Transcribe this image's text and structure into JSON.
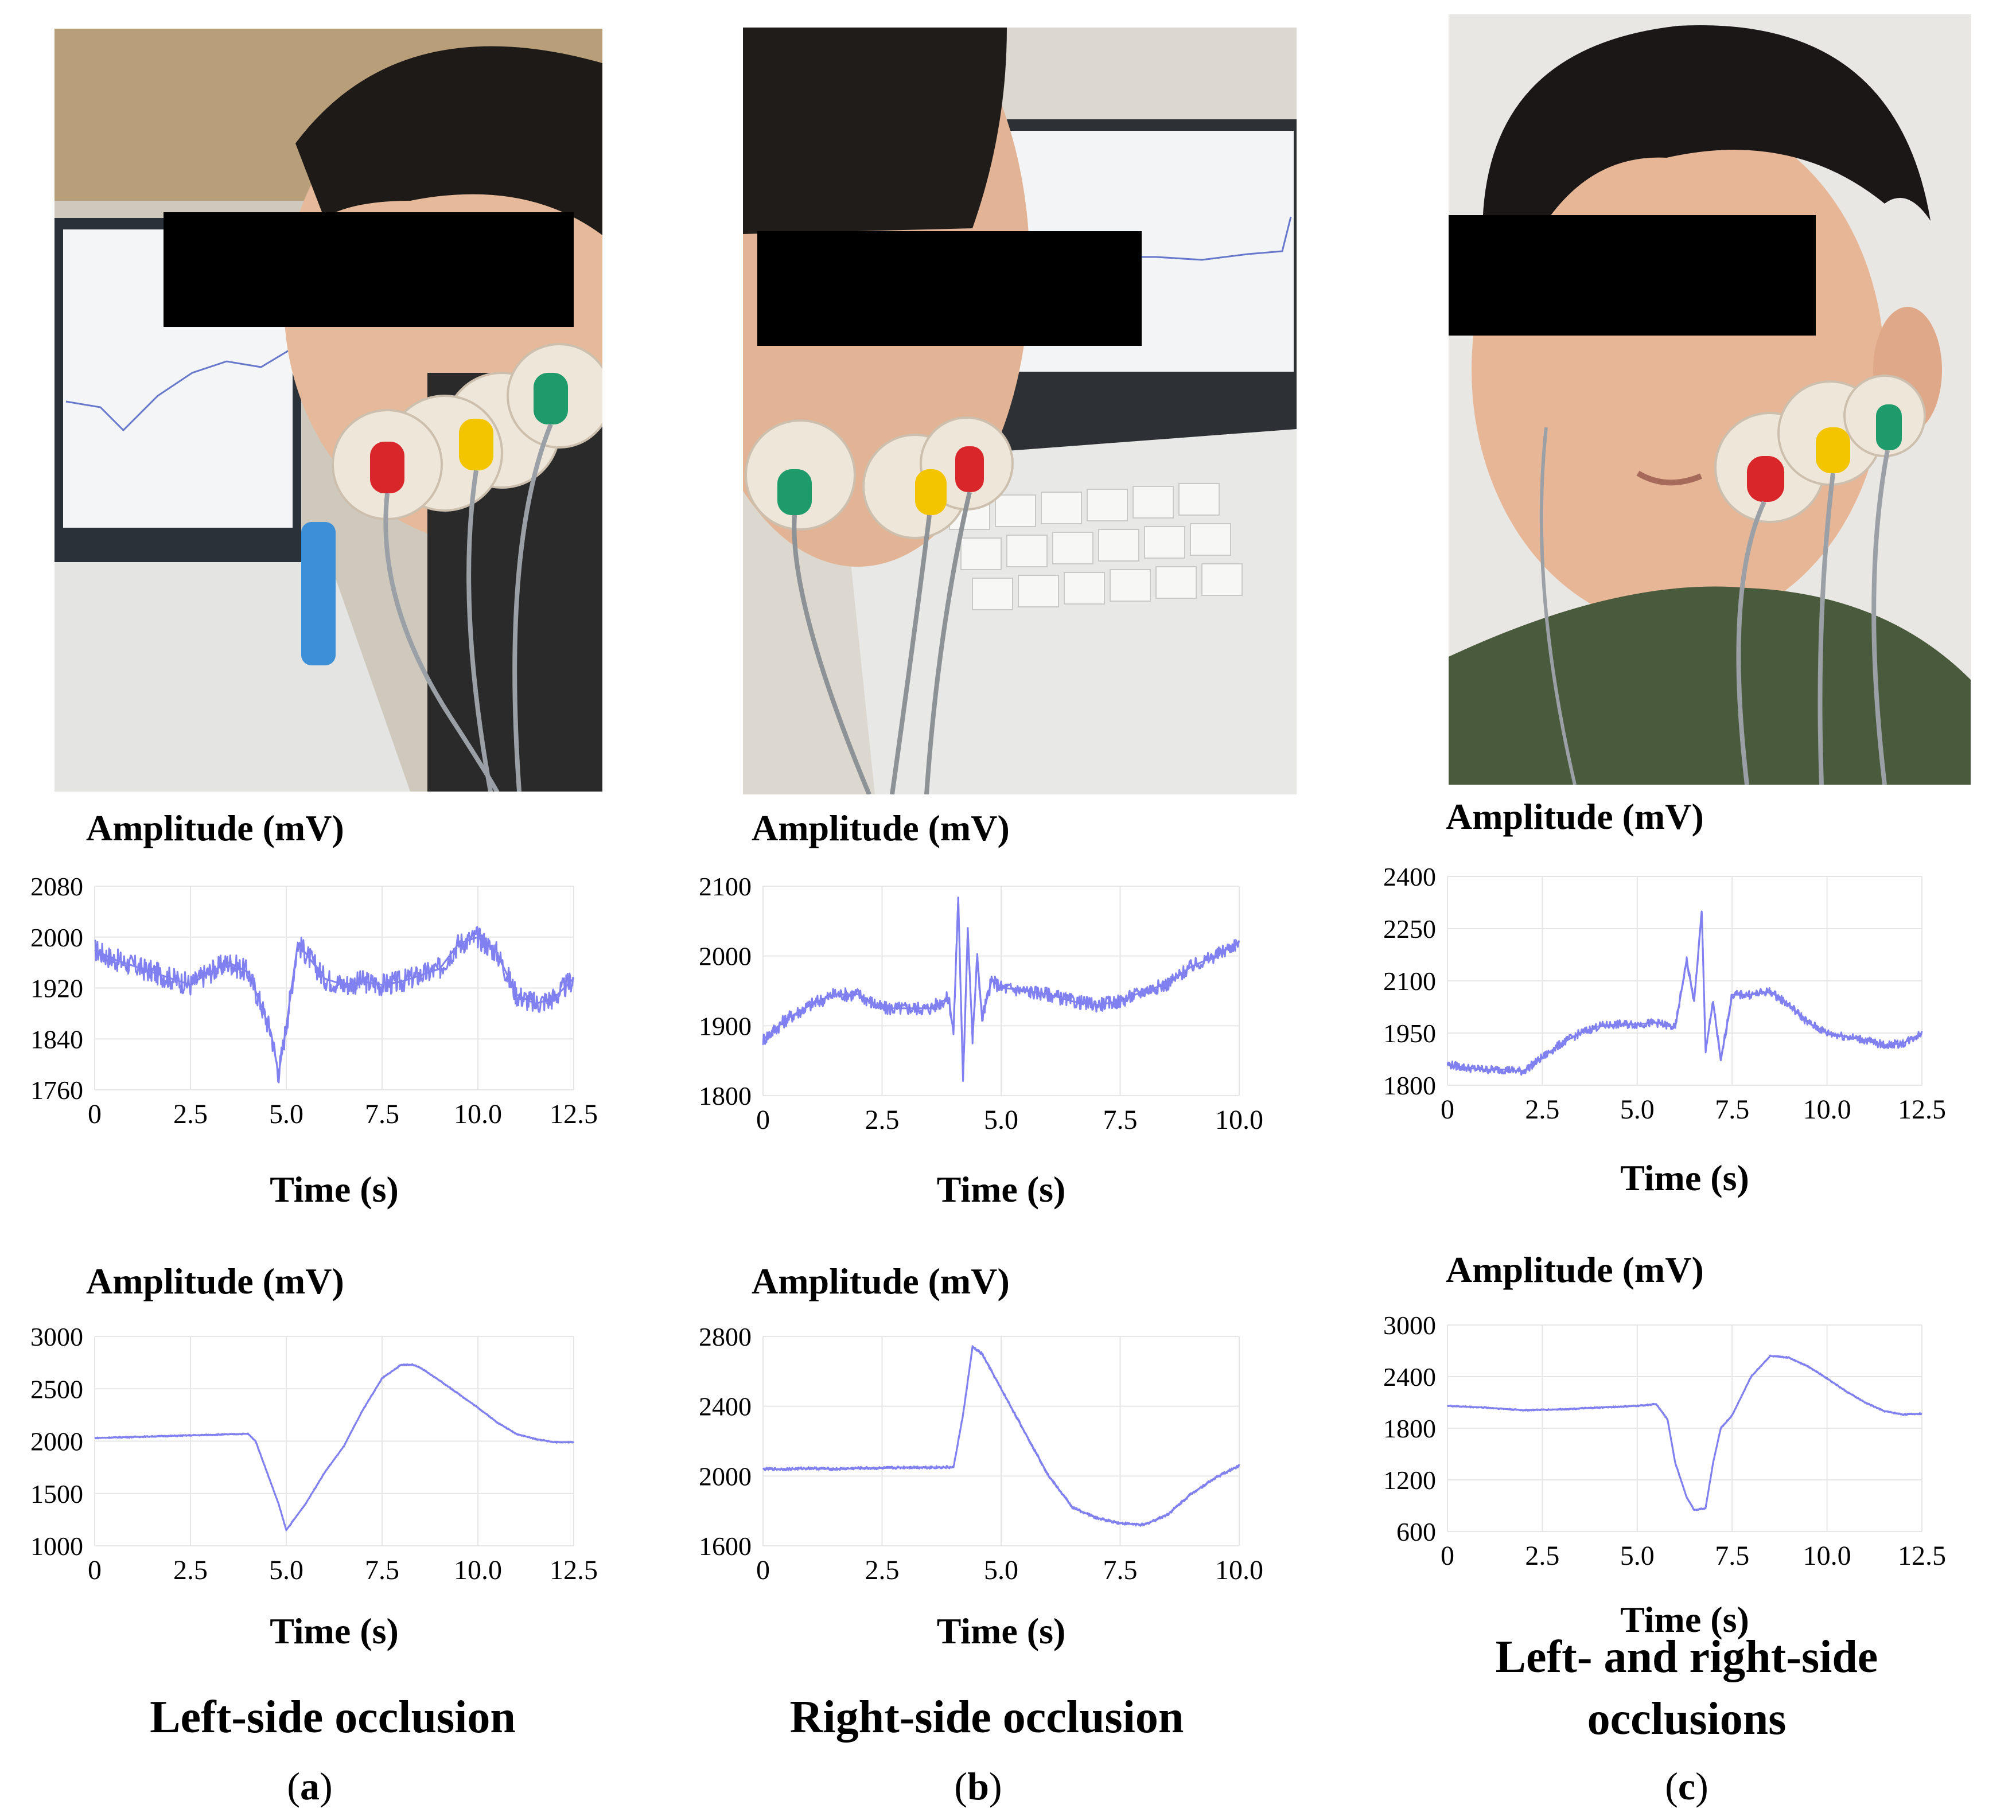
{
  "colors": {
    "signal": "#8080f0",
    "grid": "#e6e6e6",
    "redaction": "#000000",
    "electrode_red": "#d8262b",
    "electrode_yellow": "#f2c500",
    "electrode_green": "#1f9a6a"
  },
  "panels": [
    {
      "caption": "Left-side occlusion",
      "letter": "a",
      "photo": "left-side-electrode-photo"
    },
    {
      "caption": "Right-side occlusion",
      "letter": "b",
      "photo": "right-side-electrode-photo"
    },
    {
      "caption": "Left- and right-side occlusions",
      "letter": "c",
      "photo": "both-side-electrode-photo"
    }
  ],
  "chart_data": [
    {
      "id": "a-top",
      "type": "line",
      "ylabel": "Amplitude (mV)",
      "xlabel": "Time (s)",
      "xlim": [
        0,
        12.5
      ],
      "ylim": [
        1760,
        2080
      ],
      "xticks": [
        "0",
        "2.5",
        "5.0",
        "7.5",
        "10.0",
        "12.5"
      ],
      "yticks": [
        "1760",
        "1840",
        "1920",
        "2000",
        "2080"
      ],
      "series": [
        {
          "x": [
            0,
            0.5,
            1.0,
            1.5,
            2.0,
            2.5,
            3.0,
            3.5,
            4.0,
            4.3,
            4.6,
            4.8,
            5.0,
            5.3,
            5.5,
            6.0,
            6.5,
            7.0,
            7.5,
            8.0,
            8.5,
            9.0,
            9.5,
            10.0,
            10.5,
            11.0,
            11.5,
            12.0,
            12.5
          ],
          "y": [
            1980,
            1965,
            1955,
            1945,
            1935,
            1925,
            1945,
            1960,
            1945,
            1900,
            1850,
            1785,
            1860,
            1990,
            1975,
            1935,
            1925,
            1930,
            1925,
            1930,
            1940,
            1950,
            1990,
            2000,
            1975,
            1910,
            1895,
            1905,
            1935
          ],
          "noise": 18
        }
      ]
    },
    {
      "id": "b-top",
      "type": "line",
      "ylabel": "Amplitude (mV)",
      "xlabel": "Time (s)",
      "xlim": [
        0,
        10.0
      ],
      "ylim": [
        1800,
        2100
      ],
      "xticks": [
        "0",
        "2.5",
        "5.0",
        "7.5",
        "10.0"
      ],
      "yticks": [
        "1800",
        "1900",
        "2000",
        "2100"
      ],
      "series": [
        {
          "x": [
            0,
            0.5,
            1.0,
            1.5,
            2.0,
            2.5,
            3.0,
            3.5,
            3.9,
            4.0,
            4.1,
            4.2,
            4.3,
            4.4,
            4.5,
            4.6,
            4.8,
            5.0,
            5.5,
            6.0,
            6.5,
            7.0,
            7.5,
            8.0,
            8.5,
            9.0,
            9.5,
            10.0
          ],
          "y": [
            1880,
            1910,
            1930,
            1945,
            1945,
            1925,
            1925,
            1925,
            1940,
            1890,
            2085,
            1820,
            2040,
            1880,
            2000,
            1910,
            1965,
            1955,
            1950,
            1945,
            1935,
            1930,
            1935,
            1950,
            1960,
            1985,
            2000,
            2020
          ],
          "noise": 10
        }
      ]
    },
    {
      "id": "c-top",
      "type": "line",
      "ylabel": "Amplitude (mV)",
      "xlabel": "Time (s)",
      "xlim": [
        0,
        12.5
      ],
      "ylim": [
        1800,
        2400
      ],
      "xticks": [
        "0",
        "2.5",
        "5.0",
        "7.5",
        "10.0",
        "12.5"
      ],
      "yticks": [
        "1800",
        "1950",
        "2100",
        "2250",
        "2400"
      ],
      "series": [
        {
          "x": [
            0,
            0.5,
            1.0,
            1.5,
            2.0,
            2.5,
            3.0,
            3.5,
            4.0,
            4.5,
            5.0,
            5.5,
            6.0,
            6.3,
            6.5,
            6.7,
            6.8,
            7.0,
            7.2,
            7.5,
            8.0,
            8.5,
            9.0,
            9.5,
            10.0,
            10.5,
            11.0,
            11.5,
            12.0,
            12.5
          ],
          "y": [
            1860,
            1850,
            1845,
            1845,
            1840,
            1880,
            1920,
            1950,
            1970,
            1975,
            1975,
            1980,
            1965,
            2160,
            2040,
            2300,
            1900,
            2040,
            1870,
            2060,
            2060,
            2070,
            2030,
            1980,
            1950,
            1940,
            1930,
            1915,
            1920,
            1950
          ],
          "noise": 12
        }
      ]
    },
    {
      "id": "a-bottom",
      "type": "line",
      "ylabel": "Amplitude (mV)",
      "xlabel": "Time (s)",
      "xlim": [
        0,
        12.5
      ],
      "ylim": [
        1000,
        3000
      ],
      "xticks": [
        "0",
        "2.5",
        "5.0",
        "7.5",
        "10.0",
        "12.5"
      ],
      "yticks": [
        "1000",
        "1500",
        "2000",
        "2500",
        "3000"
      ],
      "series": [
        {
          "x": [
            0,
            1.0,
            2.0,
            3.0,
            4.0,
            4.2,
            4.5,
            4.8,
            5.0,
            5.2,
            5.5,
            6.0,
            6.5,
            7.0,
            7.5,
            8.0,
            8.3,
            8.5,
            9.0,
            9.5,
            10.0,
            10.5,
            11.0,
            11.5,
            12.0,
            12.5
          ],
          "y": [
            2030,
            2040,
            2050,
            2060,
            2070,
            2000,
            1700,
            1400,
            1150,
            1250,
            1400,
            1700,
            1950,
            2300,
            2600,
            2730,
            2730,
            2700,
            2580,
            2450,
            2320,
            2180,
            2070,
            2020,
            1990,
            1990
          ],
          "noise": 6
        }
      ]
    },
    {
      "id": "b-bottom",
      "type": "line",
      "ylabel": "Amplitude (mV)",
      "xlabel": "Time (s)",
      "xlim": [
        0,
        10.0
      ],
      "ylim": [
        1600,
        2800
      ],
      "xticks": [
        "0",
        "2.5",
        "5.0",
        "7.5",
        "10.0"
      ],
      "yticks": [
        "1600",
        "2000",
        "2400",
        "2800"
      ],
      "series": [
        {
          "x": [
            0,
            0.5,
            1.0,
            1.5,
            2.0,
            2.5,
            3.0,
            3.5,
            4.0,
            4.2,
            4.4,
            4.6,
            5.0,
            5.5,
            6.0,
            6.5,
            7.0,
            7.5,
            8.0,
            8.5,
            9.0,
            9.5,
            10.0
          ],
          "y": [
            2040,
            2040,
            2045,
            2040,
            2045,
            2045,
            2050,
            2050,
            2050,
            2350,
            2740,
            2700,
            2500,
            2250,
            2000,
            1820,
            1760,
            1730,
            1720,
            1780,
            1900,
            1990,
            2060
          ],
          "noise": 8
        }
      ]
    },
    {
      "id": "c-bottom",
      "type": "line",
      "ylabel": "Amplitude (mV)",
      "xlabel": "Time (s)",
      "xlim": [
        0,
        12.5
      ],
      "ylim": [
        600,
        3000
      ],
      "xticks": [
        "0",
        "2.5",
        "5.0",
        "7.5",
        "10.0",
        "12.5"
      ],
      "yticks": [
        "600",
        "1200",
        "1800",
        "2400",
        "3000"
      ],
      "series": [
        {
          "x": [
            0,
            1.0,
            2.0,
            3.0,
            4.0,
            5.0,
            5.5,
            5.8,
            6.0,
            6.3,
            6.5,
            6.8,
            7.0,
            7.2,
            7.5,
            8.0,
            8.5,
            9.0,
            9.5,
            10.0,
            10.5,
            11.0,
            11.5,
            12.0,
            12.5
          ],
          "y": [
            2060,
            2040,
            2010,
            2020,
            2040,
            2060,
            2080,
            1900,
            1400,
            1000,
            850,
            870,
            1400,
            1800,
            1950,
            2400,
            2640,
            2620,
            2520,
            2380,
            2230,
            2100,
            2000,
            1960,
            1970
          ],
          "noise": 8
        }
      ]
    }
  ]
}
